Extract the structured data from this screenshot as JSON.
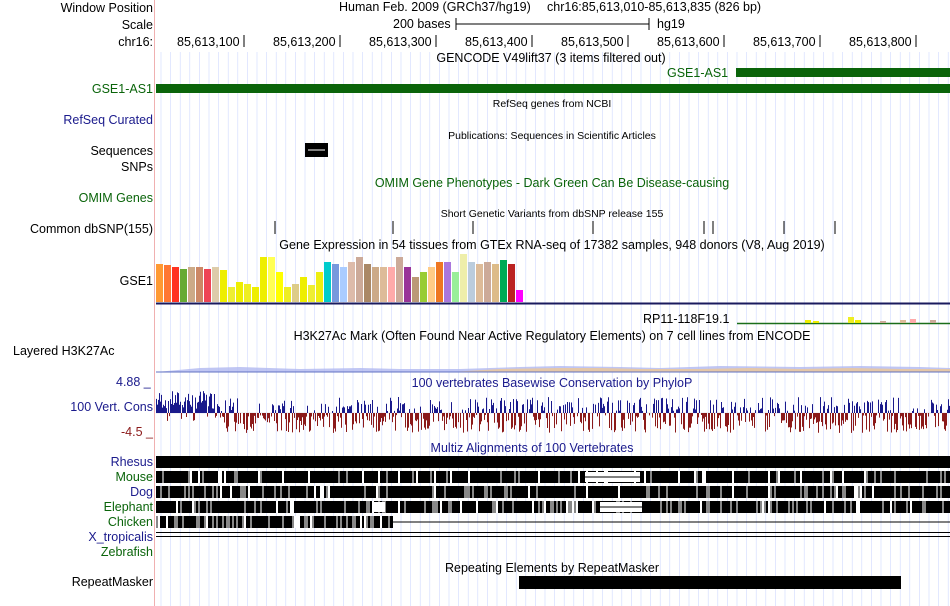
{
  "header": {
    "window_position_label": "Window Position",
    "assembly_text": "Human Feb. 2009 (GRCh37/hg19)",
    "position_text": "chr16:85,613,010-85,613,835 (826 bp)",
    "scale_label": "Scale",
    "scale_bases": "200 bases",
    "scale_assembly": "hg19",
    "chrom_label": "chr16:",
    "ticks": [
      "85,613,100",
      "85,613,200",
      "85,613,300",
      "85,613,400",
      "85,613,500",
      "85,613,600",
      "85,613,700",
      "85,613,800"
    ]
  },
  "tracks": {
    "gencode": {
      "title": "GENCODE V49lift37 (3 items filtered out)",
      "label": "GSE1-AS1",
      "item_label": "GSE1-AS1",
      "color": "#0a640a"
    },
    "refseq": {
      "title": "RefSeq genes from NCBI",
      "label": "RefSeq Curated"
    },
    "publications": {
      "title": "Publications: Sequences in Scientific Articles",
      "label": "Sequences"
    },
    "snps_label": "SNPs",
    "omim": {
      "title": "OMIM Gene Phenotypes - Dark Green Can Be Disease-causing",
      "label": "OMIM Genes"
    },
    "dbsnp": {
      "title": "Short Genetic Variants from dbSNP release 155",
      "label": "Common dbSNP(155)"
    },
    "gtex": {
      "title": "Gene Expression in 54 tissues from GTEx RNA-seq of 17382 samples, 948 donors (V8, Aug 2019)",
      "label": "GSE1",
      "item_label": "RP11-118F19.1"
    },
    "h3k27ac": {
      "title": "H3K27Ac Mark (Often Found Near Active Regulatory Elements) on 7 cell lines from ENCODE",
      "label": "Layered H3K27Ac"
    },
    "phylop": {
      "title": "100 vertebrates Basewise Conservation by PhyloP",
      "label": "100 Vert. Cons",
      "max": "4.88 _",
      "min": "-4.5 _"
    },
    "multiz": {
      "title": "Multiz Alignments of 100 Vertebrates",
      "species": [
        "Rhesus",
        "Mouse",
        "Dog",
        "Elephant",
        "Chicken",
        "X_tropicalis",
        "Zebrafish"
      ]
    },
    "repeatmasker": {
      "title": "Repeating Elements by RepeatMasker",
      "label": "RepeatMasker"
    }
  }
}
